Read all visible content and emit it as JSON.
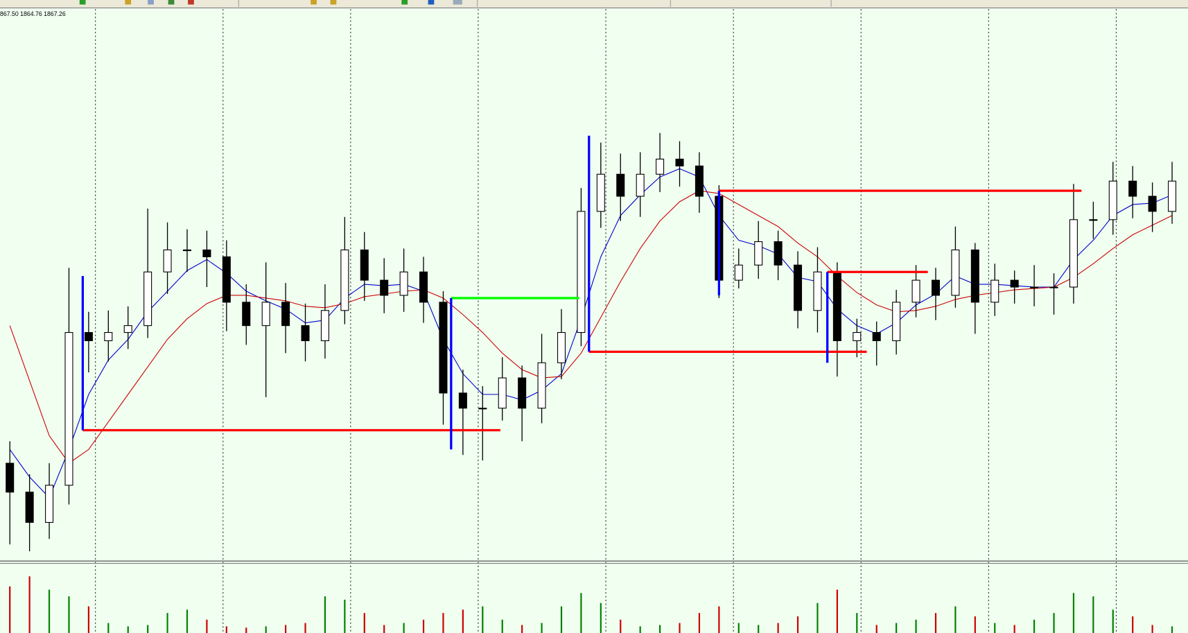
{
  "chart_data": {
    "type": "candlestick",
    "info_text": "867.50 1864.76 1867.26",
    "background": "#f0fff0",
    "ylim": [
      1840,
      1880
    ],
    "up_color": "#ffffff",
    "down_color": "#000000",
    "wick_color": "#000000",
    "open": [
      1847.0,
      1844.9,
      1842.7,
      1845.4,
      1856.5,
      1855.9,
      1856.5,
      1857.0,
      1860.9,
      1862.5,
      1862.5,
      1862.0,
      1858.7,
      1857.0,
      1858.7,
      1857.0,
      1855.9,
      1858.1,
      1862.5,
      1860.3,
      1859.2,
      1860.9,
      1858.7,
      1852.1,
      1851.0,
      1851.0,
      1853.2,
      1851.0,
      1854.3,
      1856.5,
      1865.3,
      1868.0,
      1866.4,
      1868.0,
      1869.1,
      1868.6,
      1866.4,
      1860.3,
      1861.4,
      1863.1,
      1861.4,
      1858.1,
      1860.9,
      1855.9,
      1856.5,
      1855.9,
      1858.7,
      1860.3,
      1859.2,
      1862.5,
      1858.7,
      1860.3,
      1859.8,
      1859.8,
      1859.8,
      1864.7,
      1864.7,
      1867.5,
      1866.4,
      1865.3
    ],
    "high": [
      1848.6,
      1846.2,
      1847.0,
      1861.2,
      1858.0,
      1858.1,
      1858.4,
      1865.5,
      1864.5,
      1864.0,
      1863.9,
      1863.2,
      1860.0,
      1861.6,
      1860.1,
      1858.6,
      1860.0,
      1864.9,
      1863.8,
      1861.9,
      1862.6,
      1862.0,
      1859.5,
      1853.8,
      1852.6,
      1854.7,
      1854.1,
      1856.4,
      1858.2,
      1867.0,
      1870.3,
      1869.5,
      1869.6,
      1871.0,
      1870.4,
      1869.6,
      1867.2,
      1862.6,
      1864.6,
      1863.9,
      1862.4,
      1862.7,
      1861.6,
      1857.5,
      1857.3,
      1859.6,
      1861.4,
      1861.2,
      1864.2,
      1863.0,
      1861.5,
      1861.0,
      1861.4,
      1860.8,
      1867.3,
      1866.0,
      1868.9,
      1868.6,
      1867.4,
      1868.9
    ],
    "low": [
      1841.1,
      1840.6,
      1841.5,
      1844.0,
      1853.6,
      1854.4,
      1855.3,
      1856.1,
      1859.3,
      1860.9,
      1859.8,
      1856.6,
      1855.6,
      1851.8,
      1855.0,
      1854.4,
      1854.6,
      1857.1,
      1858.8,
      1857.9,
      1858.0,
      1857.2,
      1849.8,
      1847.6,
      1847.2,
      1850.1,
      1848.6,
      1849.9,
      1853.1,
      1855.5,
      1864.1,
      1864.6,
      1864.9,
      1866.7,
      1867.1,
      1865.2,
      1859.0,
      1859.7,
      1860.4,
      1860.3,
      1856.8,
      1856.5,
      1853.3,
      1854.7,
      1854.1,
      1854.9,
      1857.6,
      1857.4,
      1858.3,
      1856.4,
      1857.7,
      1858.6,
      1858.4,
      1857.8,
      1858.6,
      1863.3,
      1863.6,
      1864.8,
      1863.8,
      1864.4
    ],
    "close": [
      1844.9,
      1842.7,
      1845.4,
      1856.5,
      1855.9,
      1856.5,
      1857.0,
      1860.9,
      1862.5,
      1862.5,
      1862.0,
      1858.7,
      1857.0,
      1858.7,
      1857.0,
      1855.9,
      1858.1,
      1862.5,
      1860.3,
      1859.2,
      1860.9,
      1858.7,
      1852.1,
      1851.0,
      1851.0,
      1853.2,
      1851.0,
      1854.3,
      1856.5,
      1865.3,
      1868.0,
      1866.4,
      1868.0,
      1869.1,
      1868.6,
      1866.4,
      1860.3,
      1861.4,
      1863.1,
      1861.4,
      1858.1,
      1860.9,
      1855.9,
      1856.5,
      1855.9,
      1858.7,
      1860.3,
      1859.2,
      1862.5,
      1858.7,
      1860.3,
      1859.8,
      1859.8,
      1859.8,
      1864.7,
      1864.7,
      1867.5,
      1866.4,
      1865.3,
      1867.5
    ],
    "lines": [
      {
        "color": "#0000cc",
        "values": [
          1848,
          1846,
          1844.5,
          1848,
          1852,
          1854.5,
          1856,
          1858,
          1859.5,
          1861,
          1861.8,
          1860.8,
          1859.5,
          1858.8,
          1858.2,
          1857.2,
          1857.4,
          1859,
          1860,
          1859.9,
          1860,
          1859.5,
          1856,
          1853.5,
          1852,
          1852,
          1851.6,
          1852.3,
          1853.5,
          1857.5,
          1862,
          1865,
          1866.5,
          1867.8,
          1868.4,
          1867.8,
          1865,
          1863.2,
          1862.8,
          1862.2,
          1860.5,
          1860.2,
          1858.2,
          1857,
          1856.4,
          1857.2,
          1858.5,
          1859.3,
          1860.6,
          1860,
          1860,
          1859.9,
          1859.8,
          1859.8,
          1861.8,
          1863.2,
          1865,
          1865.8,
          1865.9,
          1866.5
        ]
      },
      {
        "color": "#cc0000",
        "values": [
          1857,
          1853,
          1849,
          1847,
          1848,
          1850,
          1852,
          1854,
          1856,
          1857.5,
          1858.6,
          1859.2,
          1859.2,
          1859,
          1858.8,
          1858.4,
          1858.3,
          1858.6,
          1859.1,
          1859.3,
          1859.5,
          1859.6,
          1859,
          1857.8,
          1856.5,
          1855,
          1853.8,
          1853.2,
          1853.3,
          1855,
          1857.6,
          1860.2,
          1862.6,
          1864.6,
          1866,
          1866.8,
          1866.6,
          1865.8,
          1865,
          1864.2,
          1863,
          1862,
          1860.6,
          1859.4,
          1858.5,
          1858,
          1858.1,
          1858.4,
          1858.9,
          1859.2,
          1859.4,
          1859.6,
          1859.7,
          1859.8,
          1860.5,
          1861.5,
          1862.6,
          1863.6,
          1864.3,
          1865
        ]
      }
    ],
    "levels": [
      {
        "price": 1849.4,
        "from": 3.7,
        "to": 24.9,
        "color": "#ff0000"
      },
      {
        "price": 1859.0,
        "from": 22.4,
        "to": 28.9,
        "color": "#00ff00"
      },
      {
        "price": 1855.1,
        "from": 29.4,
        "to": 43.5,
        "color": "#ff0000"
      },
      {
        "price": 1866.8,
        "from": 36.0,
        "to": 54.4,
        "color": "#ff0000"
      },
      {
        "price": 1860.9,
        "from": 41.5,
        "to": 46.6,
        "color": "#ff0000"
      }
    ],
    "spans": [
      {
        "at": 3.7,
        "from_price": 1860.6,
        "to_price": 1849.4,
        "color": "#0000ff"
      },
      {
        "at": 22.4,
        "from_price": 1859.0,
        "to_price": 1848.0,
        "color": "#0000ff"
      },
      {
        "at": 29.4,
        "from_price": 1870.8,
        "to_price": 1855.1,
        "color": "#0000ff"
      },
      {
        "at": 36.0,
        "from_price": 1866.8,
        "to_price": 1859.2,
        "color": "#0000ff"
      },
      {
        "at": 41.5,
        "from_price": 1860.9,
        "to_price": 1854.3,
        "color": "#0000ff"
      }
    ],
    "volume": {
      "ylim": [
        0,
        100
      ],
      "up_color": "#008000",
      "down_color": "#cc0000",
      "values": [
        70,
        85,
        65,
        55,
        40,
        15,
        10,
        12,
        30,
        35,
        20,
        10,
        8,
        10,
        12,
        15,
        55,
        50,
        30,
        12,
        15,
        20,
        30,
        35,
        40,
        20,
        12,
        15,
        40,
        60,
        45,
        20,
        10,
        12,
        15,
        30,
        40,
        15,
        12,
        15,
        25,
        45,
        65,
        30,
        12,
        15,
        20,
        30,
        40,
        25,
        15,
        12,
        20,
        30,
        60,
        55,
        35,
        25,
        12,
        10
      ]
    }
  }
}
